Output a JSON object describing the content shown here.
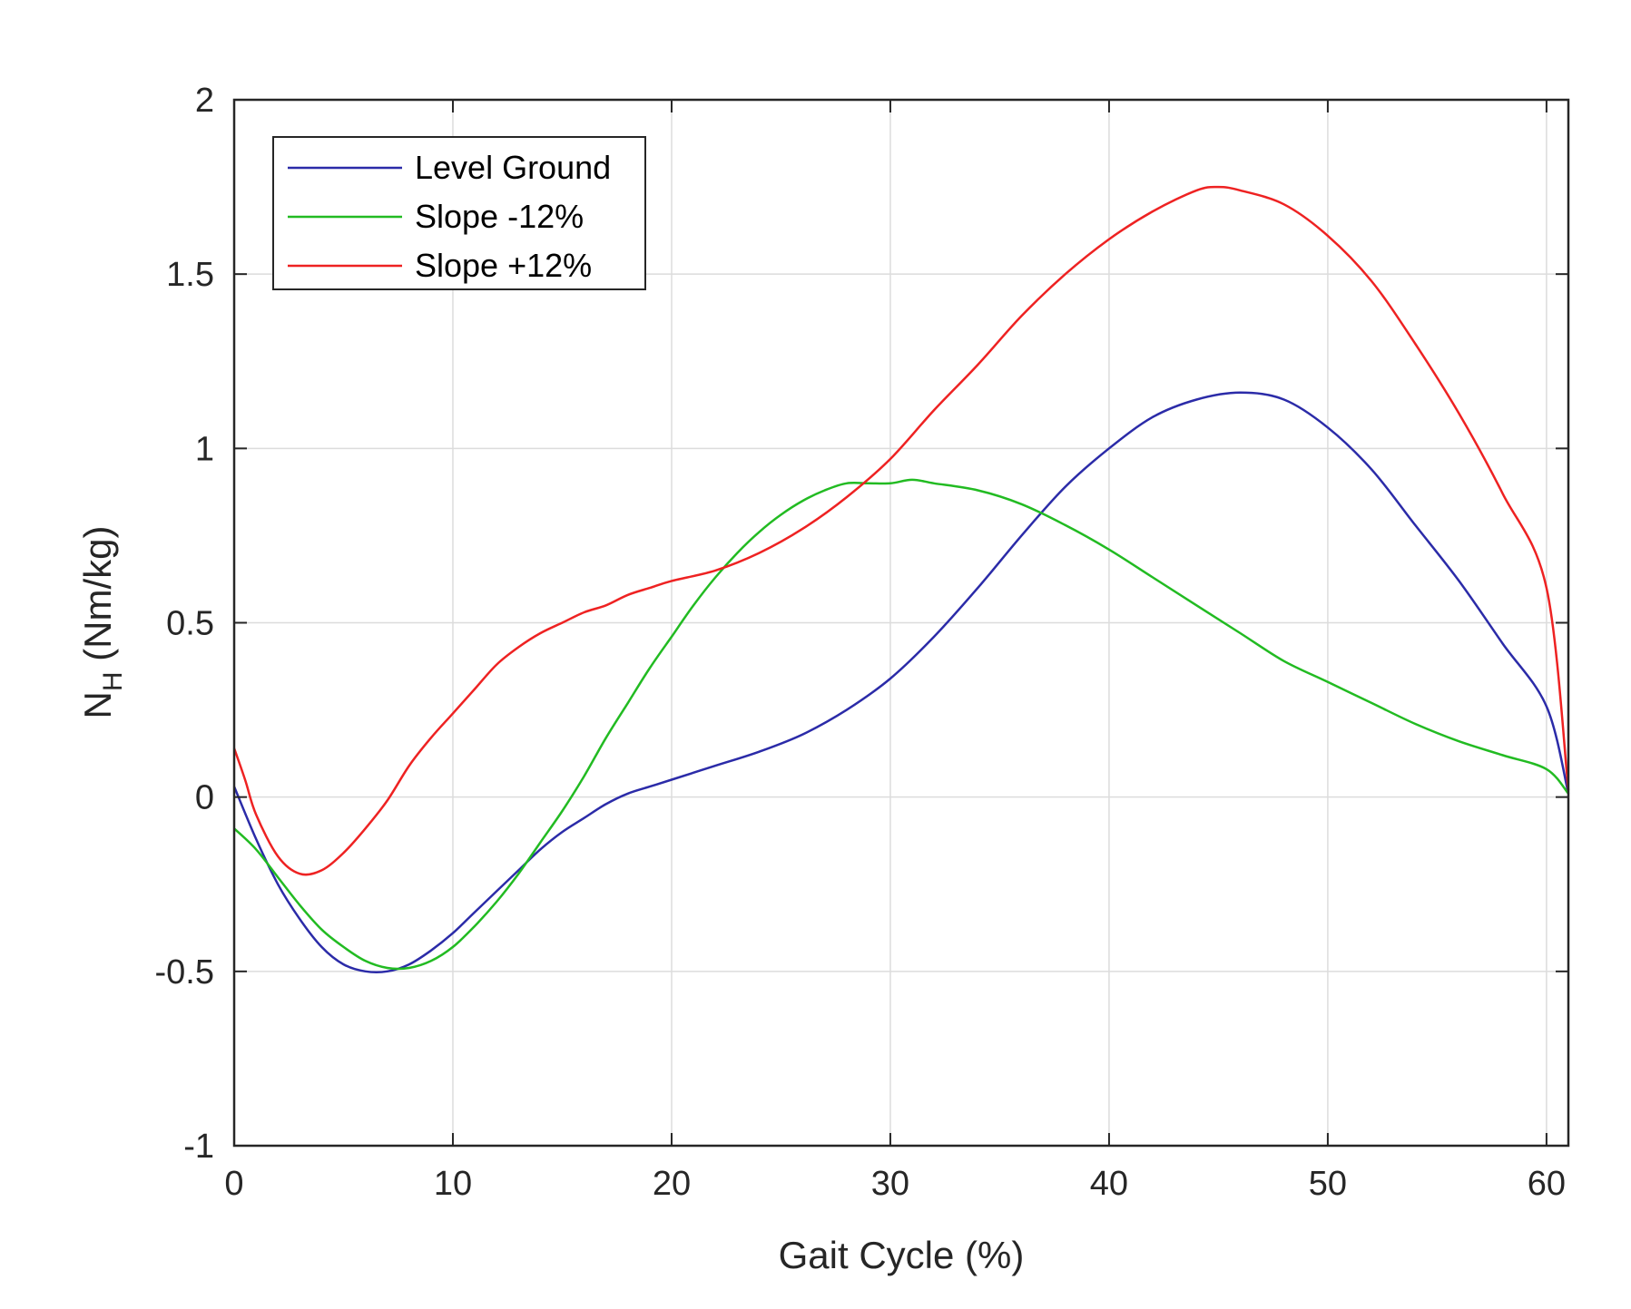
{
  "chart_data": {
    "type": "line",
    "title": "",
    "xlabel": "Gait Cycle (%)",
    "ylabel_main": "N",
    "ylabel_sub": "H",
    "ylabel_rest": " (Nm/kg)",
    "xlim": [
      0,
      61
    ],
    "ylim": [
      -1,
      2
    ],
    "xticks": [
      0,
      10,
      20,
      30,
      40,
      50,
      60
    ],
    "xtick_labels": [
      "0",
      "10",
      "20",
      "30",
      "40",
      "50",
      "60"
    ],
    "yticks": [
      -1,
      -0.5,
      0,
      0.5,
      1,
      1.5,
      2
    ],
    "ytick_labels": [
      "-1",
      "-0.5",
      "0",
      "0.5",
      "1",
      "1.5",
      "2"
    ],
    "grid": true,
    "legend_position": "top-left",
    "series": [
      {
        "name": "Level Ground",
        "color": "#2b2ba8",
        "x": [
          0,
          1,
          2,
          3,
          4,
          5,
          6,
          7,
          8,
          9,
          10,
          11,
          12,
          13,
          14,
          15,
          16,
          17,
          18,
          19,
          20,
          22,
          24,
          26,
          28,
          30,
          32,
          34,
          36,
          38,
          40,
          42,
          44,
          46,
          48,
          50,
          52,
          54,
          56,
          58,
          60,
          61
        ],
        "values": [
          0.03,
          -0.12,
          -0.25,
          -0.35,
          -0.43,
          -0.48,
          -0.5,
          -0.5,
          -0.48,
          -0.44,
          -0.39,
          -0.33,
          -0.27,
          -0.21,
          -0.15,
          -0.1,
          -0.06,
          -0.02,
          0.01,
          0.03,
          0.05,
          0.09,
          0.13,
          0.18,
          0.25,
          0.34,
          0.46,
          0.6,
          0.75,
          0.89,
          1.0,
          1.09,
          1.14,
          1.16,
          1.14,
          1.06,
          0.94,
          0.78,
          0.62,
          0.44,
          0.26,
          0.01
        ]
      },
      {
        "name": "Slope -12%",
        "color": "#22bb22",
        "x": [
          0,
          1,
          2,
          3,
          4,
          5,
          6,
          7,
          8,
          9,
          10,
          11,
          12,
          13,
          14,
          15,
          16,
          17,
          18,
          19,
          20,
          21,
          22,
          23,
          24,
          25,
          26,
          27,
          28,
          29,
          30,
          31,
          32,
          34,
          36,
          38,
          40,
          42,
          44,
          46,
          48,
          50,
          52,
          54,
          56,
          58,
          60,
          61
        ],
        "values": [
          -0.09,
          -0.15,
          -0.23,
          -0.31,
          -0.38,
          -0.43,
          -0.47,
          -0.49,
          -0.49,
          -0.47,
          -0.43,
          -0.37,
          -0.3,
          -0.22,
          -0.13,
          -0.04,
          0.06,
          0.17,
          0.27,
          0.37,
          0.46,
          0.55,
          0.63,
          0.7,
          0.76,
          0.81,
          0.85,
          0.88,
          0.9,
          0.9,
          0.9,
          0.91,
          0.9,
          0.88,
          0.84,
          0.78,
          0.71,
          0.63,
          0.55,
          0.47,
          0.39,
          0.33,
          0.27,
          0.21,
          0.16,
          0.12,
          0.08,
          0.01
        ]
      },
      {
        "name": "Slope +12%",
        "color": "#ee2222",
        "x": [
          0,
          0.5,
          1,
          2,
          3,
          4,
          5,
          6,
          7,
          8,
          9,
          10,
          11,
          12,
          13,
          14,
          15,
          16,
          17,
          18,
          19,
          20,
          22,
          24,
          26,
          28,
          30,
          32,
          34,
          36,
          38,
          40,
          42,
          44,
          45,
          46,
          48,
          50,
          52,
          54,
          56,
          58,
          60,
          61
        ],
        "values": [
          0.14,
          0.05,
          -0.05,
          -0.17,
          -0.22,
          -0.21,
          -0.16,
          -0.09,
          -0.01,
          0.09,
          0.17,
          0.24,
          0.31,
          0.38,
          0.43,
          0.47,
          0.5,
          0.53,
          0.55,
          0.58,
          0.6,
          0.62,
          0.65,
          0.7,
          0.77,
          0.86,
          0.97,
          1.11,
          1.24,
          1.38,
          1.5,
          1.6,
          1.68,
          1.74,
          1.75,
          1.74,
          1.7,
          1.61,
          1.48,
          1.3,
          1.1,
          0.87,
          0.6,
          0.02
        ]
      }
    ]
  }
}
